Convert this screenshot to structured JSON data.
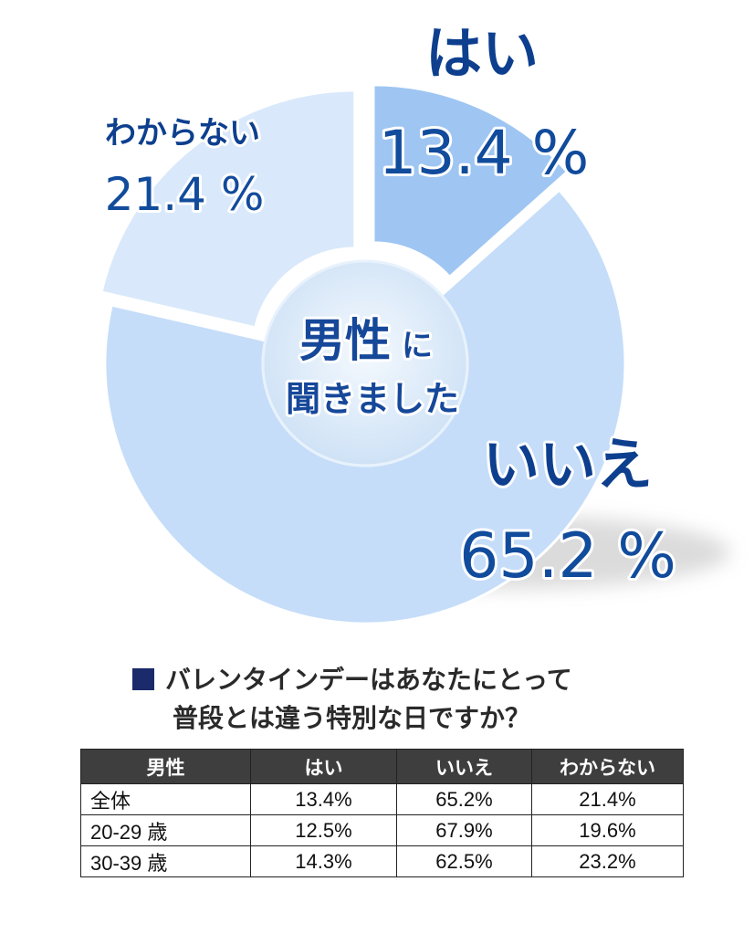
{
  "chart_data": {
    "type": "pie",
    "variant": "donut",
    "center_label": [
      "男性に",
      "聞きました"
    ],
    "center_label_parts": {
      "big": "男性",
      "small": "に",
      "line2": "聞きました"
    },
    "slices": [
      {
        "label": "はい",
        "value": 13.4,
        "display": "13.4 %",
        "color": "#9fc6f2"
      },
      {
        "label": "いいえ",
        "value": 65.2,
        "display": "65.2 %",
        "color": "#c5ddf9"
      },
      {
        "label": "わからない",
        "value": 21.4,
        "display": "21.4 %",
        "color": "#d9e9fb"
      }
    ],
    "legend": "none"
  },
  "question": {
    "line1": "バレンタインデーはあなたにとって",
    "line2": "普段とは違う特別な日ですか？"
  },
  "table": {
    "headers": [
      "男性",
      "はい",
      "いいえ",
      "わからない"
    ],
    "rows": [
      {
        "label": "全体",
        "values": [
          "13.4%",
          "65.2%",
          "21.4%"
        ]
      },
      {
        "label": "20-29 歳",
        "values": [
          "12.5%",
          "67.9%",
          "19.6%"
        ]
      },
      {
        "label": "30-39 歳",
        "values": [
          "14.3%",
          "62.5%",
          "23.2%"
        ]
      }
    ]
  },
  "colors": {
    "dark_text": "#0d3f8e",
    "table_header_bg": "#3e3e3e",
    "marker": "#1b2a6b"
  }
}
